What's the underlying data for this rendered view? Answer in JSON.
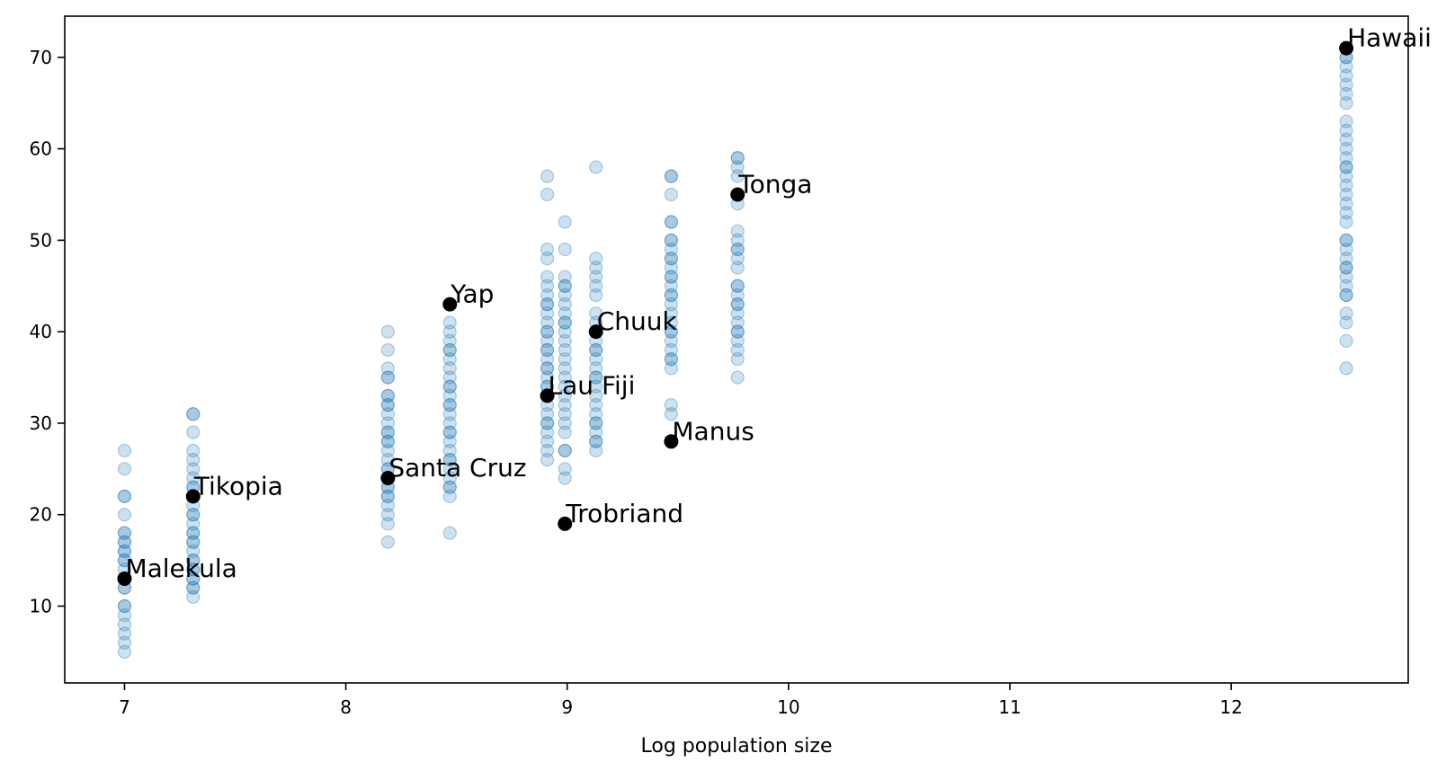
{
  "chart_data": {
    "type": "scatter",
    "title": "",
    "xlabel": "Log population size",
    "ylabel": "",
    "xlim": [
      6.73,
      12.8
    ],
    "ylim": [
      1.6,
      74.5
    ],
    "xticks": [
      7,
      8,
      9,
      10,
      11,
      12
    ],
    "yticks": [
      10,
      20,
      30,
      40,
      50,
      60,
      70
    ],
    "grid": false,
    "legend": "none",
    "colors": {
      "samples": "#1f77b4",
      "observed": "#000000"
    },
    "series": [
      {
        "kind": "posterior-samples",
        "points": [
          {
            "x": 7.0,
            "ys": [
              5,
              6,
              7,
              8,
              9,
              10,
              10,
              12,
              12,
              13,
              14,
              15,
              15,
              16,
              16,
              17,
              17,
              18,
              18,
              20,
              22,
              22,
              25,
              27
            ]
          },
          {
            "x": 7.31,
            "ys": [
              11,
              12,
              12,
              13,
              13,
              14,
              14,
              15,
              15,
              16,
              17,
              17,
              18,
              18,
              19,
              20,
              20,
              21,
              22,
              22,
              23,
              23,
              24,
              25,
              26,
              27,
              29,
              31,
              31
            ]
          },
          {
            "x": 8.19,
            "ys": [
              17,
              19,
              20,
              21,
              22,
              22,
              23,
              23,
              24,
              25,
              25,
              26,
              27,
              28,
              28,
              29,
              29,
              30,
              31,
              32,
              32,
              33,
              33,
              35,
              35,
              36,
              38,
              40
            ]
          },
          {
            "x": 8.47,
            "ys": [
              18,
              22,
              23,
              23,
              24,
              25,
              26,
              26,
              27,
              28,
              29,
              29,
              30,
              31,
              32,
              32,
              33,
              34,
              34,
              35,
              36,
              37,
              38,
              38,
              39,
              40,
              41
            ]
          },
          {
            "x": 8.91,
            "ys": [
              26,
              27,
              28,
              29,
              30,
              30,
              31,
              32,
              33,
              34,
              34,
              35,
              36,
              36,
              37,
              38,
              38,
              39,
              40,
              40,
              41,
              42,
              43,
              43,
              44,
              45,
              46,
              48,
              49,
              55,
              57
            ]
          },
          {
            "x": 8.99,
            "ys": [
              24,
              25,
              27,
              27,
              29,
              30,
              31,
              32,
              33,
              34,
              35,
              36,
              37,
              38,
              39,
              40,
              41,
              41,
              42,
              43,
              44,
              45,
              45,
              46,
              49,
              52
            ]
          },
          {
            "x": 9.13,
            "ys": [
              27,
              28,
              28,
              29,
              30,
              30,
              31,
              32,
              33,
              34,
              35,
              35,
              36,
              37,
              38,
              38,
              39,
              41,
              42,
              44,
              45,
              46,
              47,
              48,
              58
            ]
          },
          {
            "x": 9.47,
            "ys": [
              31,
              32,
              36,
              37,
              37,
              38,
              39,
              40,
              40,
              41,
              42,
              43,
              44,
              44,
              45,
              46,
              46,
              47,
              48,
              48,
              49,
              50,
              50,
              52,
              52,
              55,
              57,
              57
            ]
          },
          {
            "x": 9.77,
            "ys": [
              35,
              37,
              38,
              39,
              40,
              40,
              41,
              42,
              43,
              43,
              44,
              45,
              45,
              47,
              48,
              49,
              49,
              50,
              51,
              54,
              55,
              57,
              58,
              59,
              59
            ]
          },
          {
            "x": 12.52,
            "ys": [
              36,
              39,
              41,
              42,
              44,
              44,
              45,
              46,
              47,
              47,
              48,
              49,
              50,
              50,
              52,
              53,
              54,
              55,
              56,
              57,
              58,
              58,
              59,
              60,
              61,
              62,
              63,
              65,
              66,
              67,
              68,
              69,
              70,
              70,
              71
            ]
          }
        ]
      },
      {
        "kind": "observed",
        "points": [
          {
            "name": "Malekula",
            "x": 7.0,
            "y": 13
          },
          {
            "name": "Tikopia",
            "x": 7.31,
            "y": 22
          },
          {
            "name": "Santa Cruz",
            "x": 8.19,
            "y": 24
          },
          {
            "name": "Yap",
            "x": 8.47,
            "y": 43
          },
          {
            "name": "Lau Fiji",
            "x": 8.91,
            "y": 33
          },
          {
            "name": "Trobriand",
            "x": 8.99,
            "y": 19
          },
          {
            "name": "Chuuk",
            "x": 9.13,
            "y": 40
          },
          {
            "name": "Manus",
            "x": 9.47,
            "y": 28
          },
          {
            "name": "Tonga",
            "x": 9.77,
            "y": 55
          },
          {
            "name": "Hawaii",
            "x": 12.52,
            "y": 71
          }
        ]
      }
    ]
  }
}
